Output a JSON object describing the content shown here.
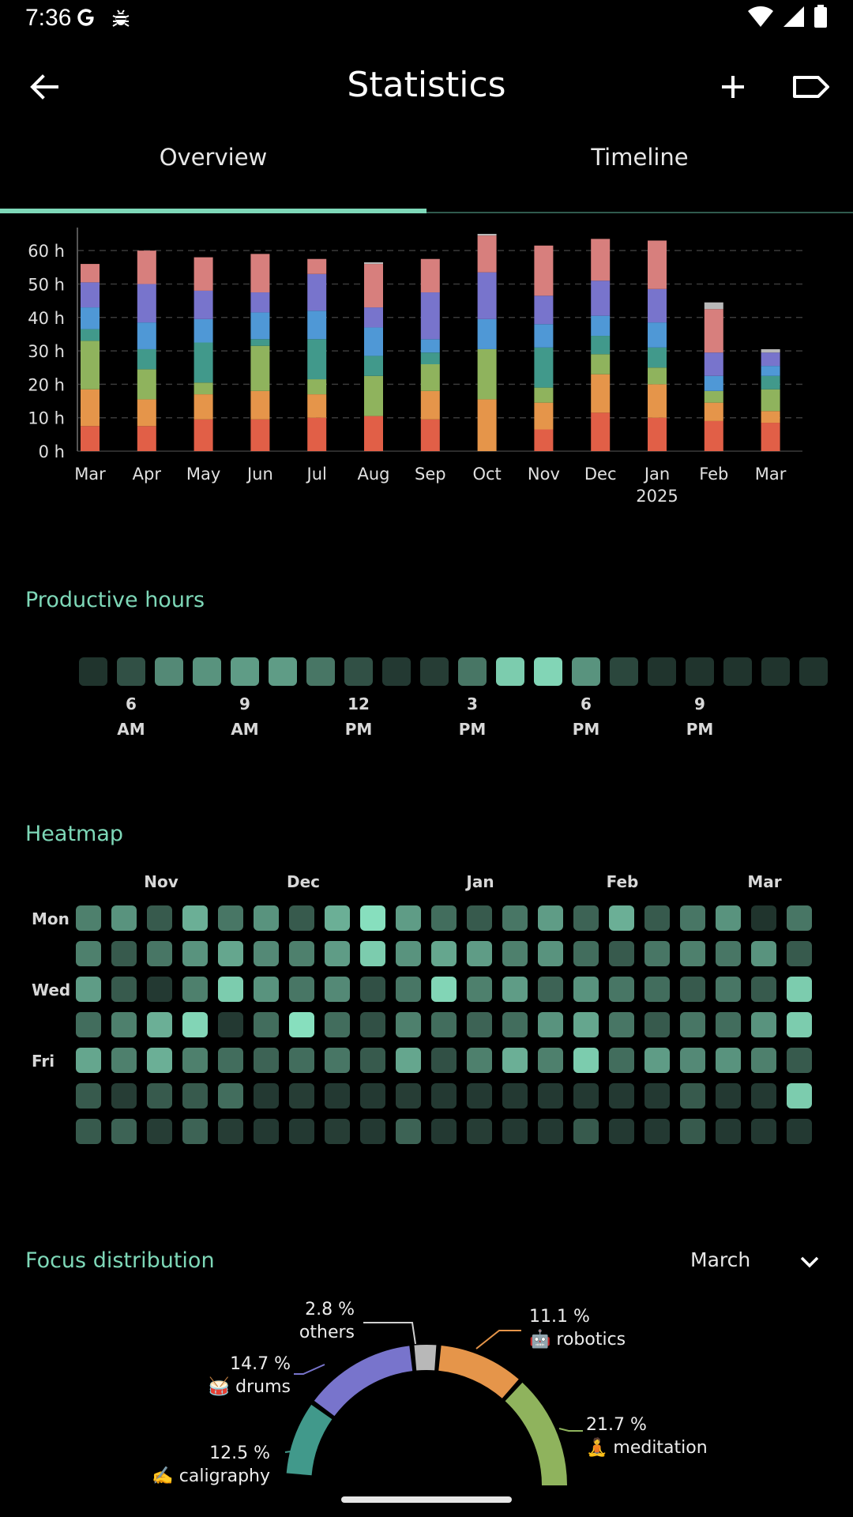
{
  "status_bar": {
    "time": "7:36"
  },
  "app_bar": {
    "title": "Statistics"
  },
  "tabs": [
    {
      "label": "Overview"
    },
    {
      "label": "Timeline"
    }
  ],
  "colors": {
    "accent": "#7ed8b8",
    "background": "#000000"
  },
  "chart_data": {
    "type": "bar",
    "stacked": true,
    "y_ticks": [
      "0 h",
      "10 h",
      "20 h",
      "30 h",
      "40 h",
      "50 h",
      "60 h"
    ],
    "ylim": [
      0,
      65
    ],
    "categories": [
      "Mar",
      "Apr",
      "May",
      "Jun",
      "Jul",
      "Aug",
      "Sep",
      "Oct",
      "Nov",
      "Dec",
      "Jan",
      "Feb",
      "Mar"
    ],
    "category_sublabels": [
      "",
      "",
      "",
      "",
      "",
      "",
      "",
      "",
      "",
      "",
      "2025",
      "",
      ""
    ],
    "grid": true,
    "series": [
      {
        "color": "#e15f47",
        "values": [
          7.5,
          7.5,
          9.5,
          9.5,
          10,
          10.5,
          9.5,
          0,
          6.5,
          11.5,
          10,
          9,
          8.5
        ]
      },
      {
        "color": "#e5954a",
        "values": [
          11,
          8,
          7.5,
          8.5,
          7,
          0,
          8.5,
          15.5,
          8,
          11.5,
          10,
          5.5,
          3.5
        ]
      },
      {
        "color": "#8fb35d",
        "values": [
          14.5,
          9,
          3.5,
          13.5,
          4.5,
          12,
          8,
          15,
          4.5,
          6,
          5,
          3.5,
          6.5
        ]
      },
      {
        "color": "#41998b",
        "values": [
          3.5,
          6,
          12,
          2,
          12,
          6,
          3.5,
          0,
          12,
          5.5,
          6,
          0,
          4
        ]
      },
      {
        "color": "#4f98d6",
        "values": [
          6.5,
          8,
          7,
          8,
          8.5,
          8.5,
          4,
          9,
          7,
          6,
          7.5,
          4.5,
          3
        ]
      },
      {
        "color": "#7874cc",
        "values": [
          7.5,
          11.5,
          8.5,
          6,
          11,
          6,
          14,
          14,
          8.5,
          10.5,
          10,
          7,
          4
        ]
      },
      {
        "color": "#d77f7d",
        "values": [
          5.5,
          10,
          10,
          11.5,
          4.5,
          13,
          10,
          11,
          15,
          12.5,
          14.5,
          13,
          0
        ]
      },
      {
        "color": "#b8b8b8",
        "values": [
          0,
          0,
          0,
          0,
          0,
          0.5,
          0,
          0.5,
          0,
          0,
          0,
          2,
          1
        ]
      }
    ]
  },
  "productive_hours": {
    "title": "Productive hours",
    "levels": [
      0.05,
      0.2,
      0.5,
      0.55,
      0.6,
      0.6,
      0.4,
      0.2,
      0.08,
      0.1,
      0.4,
      0.85,
      0.9,
      0.55,
      0.15,
      0.05,
      0.05,
      0.05,
      0.05,
      0.05
    ],
    "hour_labels": [
      {
        "top": "6",
        "bottom": "AM"
      },
      {
        "top": "9",
        "bottom": "AM"
      },
      {
        "top": "12",
        "bottom": "PM"
      },
      {
        "top": "3",
        "bottom": "PM"
      },
      {
        "top": "6",
        "bottom": "PM"
      },
      {
        "top": "9",
        "bottom": "PM"
      }
    ]
  },
  "heatmap": {
    "title": "Heatmap",
    "month_labels": [
      "Nov",
      "Dec",
      "Jan",
      "Feb",
      "Mar"
    ],
    "day_labels": [
      "Mon",
      "",
      "Wed",
      "",
      "Fri",
      "",
      ""
    ],
    "cells": [
      [
        0.45,
        0.55,
        0.25,
        0.7,
        0.4,
        0.55,
        0.25,
        0.7,
        0.95,
        0.6,
        0.35,
        0.25,
        0.4,
        0.6,
        0.3,
        0.7,
        0.25,
        0.4,
        0.55,
        0.05,
        0.4
      ],
      [
        0.45,
        0.25,
        0.4,
        0.55,
        0.65,
        0.5,
        0.45,
        0.6,
        0.85,
        0.55,
        0.65,
        0.6,
        0.45,
        0.55,
        0.35,
        0.25,
        0.4,
        0.45,
        0.4,
        0.55,
        0.25
      ],
      [
        0.6,
        0.25,
        0.08,
        0.45,
        0.85,
        0.55,
        0.4,
        0.5,
        0.2,
        0.4,
        0.9,
        0.45,
        0.6,
        0.3,
        0.55,
        0.4,
        0.35,
        0.25,
        0.4,
        0.25,
        0.85
      ],
      [
        0.35,
        0.45,
        0.7,
        0.9,
        0.08,
        0.35,
        0.95,
        0.35,
        0.2,
        0.45,
        0.35,
        0.3,
        0.35,
        0.55,
        0.65,
        0.4,
        0.25,
        0.4,
        0.35,
        0.55,
        0.85
      ],
      [
        0.65,
        0.45,
        0.7,
        0.45,
        0.35,
        0.3,
        0.35,
        0.4,
        0.25,
        0.65,
        0.2,
        0.45,
        0.7,
        0.45,
        0.85,
        0.35,
        0.6,
        0.5,
        0.55,
        0.45,
        0.25
      ],
      [
        0.25,
        0.1,
        0.25,
        0.25,
        0.35,
        0.08,
        0.1,
        0.08,
        0.08,
        0.1,
        0.08,
        0.08,
        0.08,
        0.08,
        0.08,
        0.08,
        0.08,
        0.25,
        0.08,
        0.08,
        0.85
      ],
      [
        0.25,
        0.3,
        0.1,
        0.3,
        0.1,
        0.08,
        0.08,
        0.1,
        0.08,
        0.3,
        0.08,
        0.1,
        0.08,
        0.08,
        0.25,
        0.08,
        0.08,
        0.25,
        0.08,
        0.08,
        0.08
      ]
    ]
  },
  "focus_distribution": {
    "title": "Focus distribution",
    "period": "March",
    "slices": [
      {
        "percent": "12.5 %",
        "name": "✍️ caligraphy",
        "color": "#41998b"
      },
      {
        "percent": "14.7 %",
        "name": "🥁 drums",
        "color": "#7874cc"
      },
      {
        "percent": "2.8 %",
        "name": "others",
        "color": "#b8b8b8"
      },
      {
        "percent": "11.1 %",
        "name": "🤖 robotics",
        "color": "#e5954a"
      },
      {
        "percent": "21.7 %",
        "name": "🧘 meditation",
        "color": "#8fb35d"
      }
    ]
  }
}
